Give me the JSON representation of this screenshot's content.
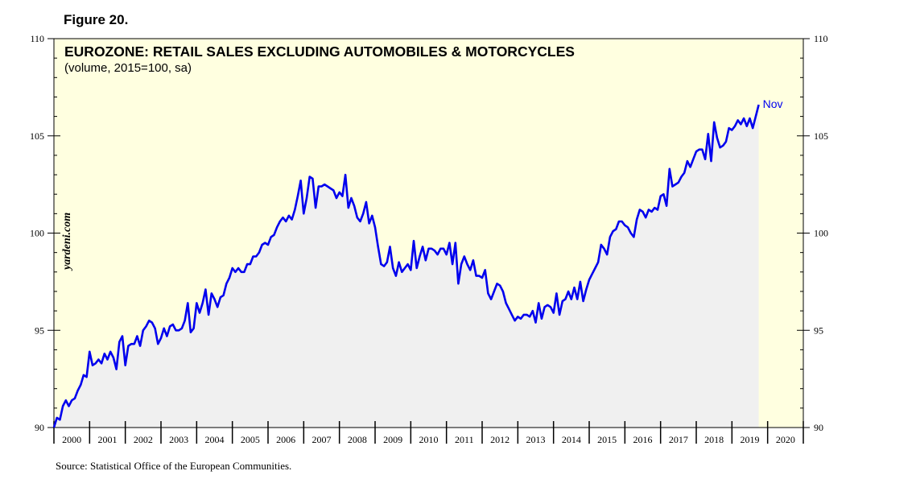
{
  "figure_label": "Figure 20.",
  "source": "Source: Statistical Office of the European Communities.",
  "watermark": "yardeni.com",
  "colors": {
    "background": "#ffffe0",
    "area": "#f0f0f0",
    "line": "#0000ee",
    "axis": "#000000"
  },
  "chart_data": {
    "type": "area",
    "title": "EUROZONE: RETAIL SALES EXCLUDING AUTOMOBILES & MOTORCYCLES",
    "subtitle": "(volume, 2015=100, sa)",
    "xlabel": "",
    "ylabel": "",
    "ylim": [
      90,
      110
    ],
    "yticks": [
      90,
      95,
      100,
      105,
      110
    ],
    "xlim": [
      2000,
      2021
    ],
    "year_labels": [
      "2000",
      "2001",
      "2002",
      "2003",
      "2004",
      "2005",
      "2006",
      "2007",
      "2008",
      "2009",
      "2010",
      "2011",
      "2012",
      "2013",
      "2014",
      "2015",
      "2016",
      "2017",
      "2018",
      "2019",
      "2020"
    ],
    "end_label": "Nov",
    "grid": false,
    "series": [
      {
        "name": "Retail sales excluding automobiles & motorcycles",
        "start_year": 2000,
        "frequency": "monthly",
        "values": [
          90.0,
          90.5,
          90.4,
          91.1,
          91.4,
          91.1,
          91.4,
          91.5,
          91.9,
          92.2,
          92.7,
          92.6,
          93.9,
          93.2,
          93.3,
          93.5,
          93.3,
          93.8,
          93.5,
          93.9,
          93.6,
          93.0,
          94.4,
          94.7,
          93.2,
          94.2,
          94.3,
          94.3,
          94.7,
          94.2,
          95.0,
          95.2,
          95.5,
          95.4,
          95.1,
          94.3,
          94.6,
          95.1,
          94.7,
          95.2,
          95.3,
          95.0,
          95.0,
          95.1,
          95.5,
          96.4,
          94.9,
          95.1,
          96.4,
          95.9,
          96.4,
          97.1,
          95.8,
          96.9,
          96.6,
          96.2,
          96.7,
          96.8,
          97.4,
          97.7,
          98.2,
          98.0,
          98.2,
          98.0,
          98.0,
          98.4,
          98.4,
          98.8,
          98.8,
          99.0,
          99.4,
          99.5,
          99.4,
          99.8,
          99.9,
          100.3,
          100.6,
          100.8,
          100.6,
          100.9,
          100.7,
          101.2,
          101.9,
          102.7,
          101.0,
          101.8,
          102.9,
          102.8,
          101.3,
          102.4,
          102.4,
          102.5,
          102.4,
          102.3,
          102.2,
          101.8,
          102.1,
          101.9,
          103.0,
          101.3,
          101.8,
          101.4,
          100.8,
          100.6,
          101.0,
          101.6,
          100.5,
          100.9,
          100.3,
          99.3,
          98.4,
          98.3,
          98.5,
          99.3,
          98.2,
          97.8,
          98.5,
          98.0,
          98.2,
          98.4,
          98.1,
          99.6,
          98.2,
          98.8,
          99.3,
          98.6,
          99.2,
          99.2,
          99.1,
          98.9,
          99.2,
          99.2,
          98.9,
          99.5,
          98.4,
          99.5,
          97.4,
          98.4,
          98.8,
          98.4,
          98.1,
          98.6,
          97.8,
          97.8,
          97.7,
          98.1,
          96.9,
          96.6,
          97.0,
          97.4,
          97.3,
          97.0,
          96.4,
          96.1,
          95.8,
          95.5,
          95.7,
          95.6,
          95.8,
          95.8,
          95.7,
          96.0,
          95.4,
          96.4,
          95.6,
          96.2,
          96.3,
          96.2,
          95.9,
          96.9,
          95.8,
          96.5,
          96.6,
          97.0,
          96.6,
          97.2,
          96.6,
          97.5,
          96.5,
          97.1,
          97.6,
          97.9,
          98.2,
          98.5,
          99.4,
          99.2,
          98.9,
          99.8,
          100.1,
          100.2,
          100.6,
          100.6,
          100.4,
          100.3,
          100.0,
          99.8,
          100.7,
          101.2,
          101.1,
          100.8,
          101.2,
          101.1,
          101.3,
          101.2,
          101.9,
          102.0,
          101.4,
          103.3,
          102.4,
          102.5,
          102.6,
          102.9,
          103.1,
          103.7,
          103.4,
          103.8,
          104.2,
          104.3,
          104.3,
          103.8,
          105.1,
          103.7,
          105.7,
          104.9,
          104.4,
          104.5,
          104.7,
          105.4,
          105.3,
          105.5,
          105.8,
          105.6,
          105.9,
          105.5,
          105.9,
          105.4,
          106.0,
          106.6
        ]
      }
    ]
  }
}
